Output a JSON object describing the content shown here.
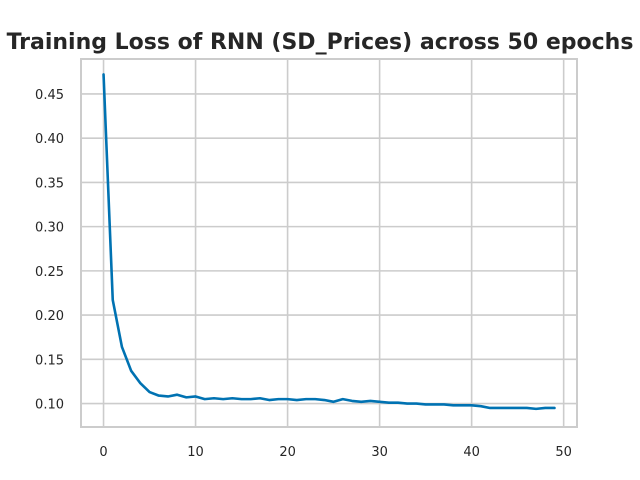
{
  "chart_data": {
    "type": "line",
    "title": "Training Loss of RNN (SD_Prices) across 50 epochs",
    "xlabel": "",
    "ylabel": "",
    "xlim": [
      -2.45,
      51.45
    ],
    "ylim": [
      0.0735,
      0.4895
    ],
    "xticks": [
      0,
      10,
      20,
      30,
      40,
      50
    ],
    "yticks": [
      0.1,
      0.15,
      0.2,
      0.25,
      0.3,
      0.35,
      0.4,
      0.45
    ],
    "ytick_labels": [
      "0.10",
      "0.15",
      "0.20",
      "0.25",
      "0.30",
      "0.35",
      "0.40",
      "0.45"
    ],
    "grid": true,
    "legend": "none",
    "series": [
      {
        "color": "#0072b2",
        "x": [
          0,
          1,
          2,
          3,
          4,
          5,
          6,
          7,
          8,
          9,
          10,
          11,
          12,
          13,
          14,
          15,
          16,
          17,
          18,
          19,
          20,
          21,
          22,
          23,
          24,
          25,
          26,
          27,
          28,
          29,
          30,
          31,
          32,
          33,
          34,
          35,
          36,
          37,
          38,
          39,
          40,
          41,
          42,
          43,
          44,
          45,
          46,
          47,
          48,
          49
        ],
        "values": [
          0.472,
          0.217,
          0.164,
          0.137,
          0.123,
          0.113,
          0.109,
          0.108,
          0.11,
          0.107,
          0.108,
          0.105,
          0.106,
          0.105,
          0.106,
          0.105,
          0.105,
          0.106,
          0.104,
          0.105,
          0.105,
          0.104,
          0.105,
          0.105,
          0.104,
          0.102,
          0.105,
          0.103,
          0.102,
          0.103,
          0.102,
          0.101,
          0.101,
          0.1,
          0.1,
          0.099,
          0.099,
          0.099,
          0.098,
          0.098,
          0.098,
          0.097,
          0.095,
          0.095,
          0.095,
          0.095,
          0.095,
          0.094,
          0.095,
          0.095
        ]
      }
    ]
  }
}
